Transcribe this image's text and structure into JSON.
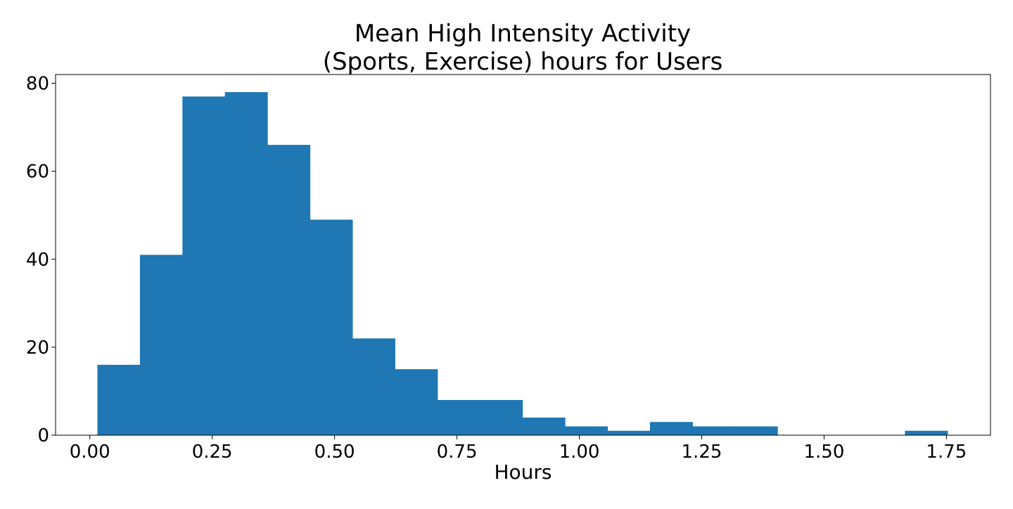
{
  "chart_data": {
    "type": "bar",
    "subtype": "histogram",
    "title": [
      "Mean High Intensity Activity",
      "(Sports, Exercise) hours for Users"
    ],
    "xlabel": "Hours",
    "ylabel": "",
    "xlim": [
      -0.07,
      1.84
    ],
    "ylim": [
      0,
      82
    ],
    "xticks": [
      "0.00",
      "0.25",
      "0.50",
      "0.75",
      "1.00",
      "1.25",
      "1.50",
      "1.75"
    ],
    "xtick_values": [
      0.0,
      0.25,
      0.5,
      0.75,
      1.0,
      1.25,
      1.5,
      1.75
    ],
    "yticks": [
      "0",
      "20",
      "40",
      "60",
      "80"
    ],
    "ytick_values": [
      0,
      20,
      40,
      60,
      80
    ],
    "bin_edges": [
      0.0155,
      0.1023,
      0.1892,
      0.276,
      0.3628,
      0.4497,
      0.5365,
      0.6233,
      0.7102,
      0.797,
      0.8838,
      0.9707,
      1.0575,
      1.1443,
      1.2312,
      1.318,
      1.4048,
      1.4917,
      1.5785,
      1.6653,
      1.7522
    ],
    "values": [
      16,
      41,
      77,
      78,
      66,
      49,
      22,
      15,
      8,
      8,
      4,
      2,
      1,
      3,
      2,
      2,
      0,
      0,
      0,
      1
    ],
    "bar_color": "#1f77b4",
    "grid": false,
    "legend": "none"
  }
}
